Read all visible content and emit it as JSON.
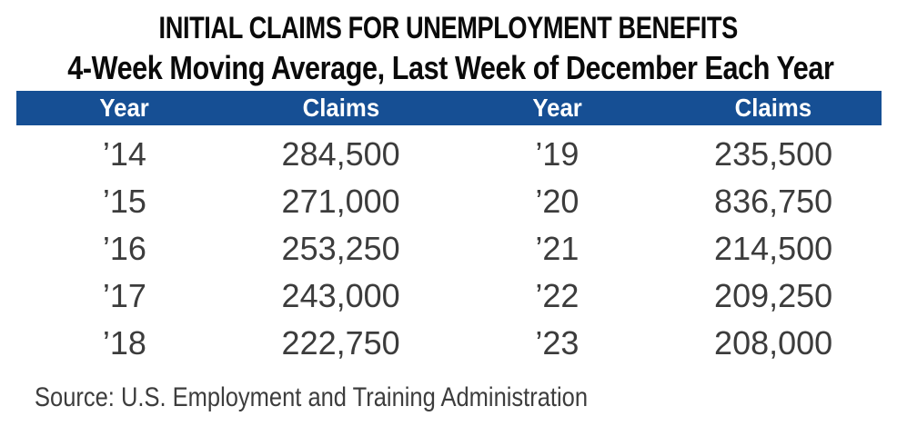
{
  "colors": {
    "header_bg": "#164F94",
    "header_text": "#FFFFFF",
    "body_text": "#3C3C3C",
    "title_text": "#0A0A0A",
    "background": "#FFFFFF"
  },
  "chart_data": {
    "type": "table",
    "title": "INITIAL CLAIMS FOR UNEMPLOYMENT BENEFITS",
    "subtitle": "4-Week Moving Average, Last Week of December Each Year",
    "columns": [
      "Year",
      "Claims",
      "Year",
      "Claims"
    ],
    "rows": [
      [
        "’14",
        "284,500",
        "’19",
        "235,500"
      ],
      [
        "’15",
        "271,000",
        "’20",
        "836,750"
      ],
      [
        "’16",
        "253,250",
        "’21",
        "214,500"
      ],
      [
        "’17",
        "243,000",
        "’22",
        "209,250"
      ],
      [
        "’18",
        "222,750",
        "’23",
        "208,000"
      ]
    ],
    "source": "Source: U.S. Employment and Training Administration"
  }
}
